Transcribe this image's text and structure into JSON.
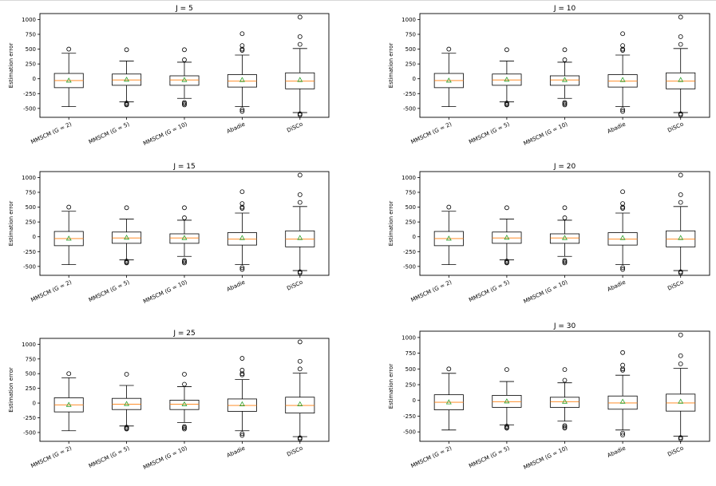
{
  "chart_data": [
    {
      "type": "box",
      "title": "J = 5",
      "ylabel": "Estimation error",
      "ylim": [
        -650,
        1100
      ],
      "yticks": [
        -500,
        -250,
        0,
        250,
        500,
        750,
        1000
      ],
      "categories": [
        "MMSCM (G = 2)",
        "MMSCM (G = 5)",
        "MMSCM (G = 10)",
        "Abadie",
        "DiSCo"
      ],
      "boxes": [
        {
          "whislo": -470,
          "q1": -150,
          "med": -30,
          "q3": 90,
          "whishi": 430,
          "mean": -30,
          "fliers": [
            500
          ]
        },
        {
          "whislo": -390,
          "q1": -110,
          "med": -20,
          "q3": 80,
          "whishi": 300,
          "mean": -15,
          "fliers": [
            490,
            -410,
            -430,
            -440
          ]
        },
        {
          "whislo": -330,
          "q1": -110,
          "med": -20,
          "q3": 50,
          "whishi": 280,
          "mean": -20,
          "fliers": [
            320,
            490,
            -400,
            -420,
            -440
          ]
        },
        {
          "whislo": -470,
          "q1": -140,
          "med": -40,
          "q3": 70,
          "whishi": 400,
          "mean": -20,
          "fliers": [
            480,
            500,
            560,
            760,
            -520,
            -550
          ]
        },
        {
          "whislo": -570,
          "q1": -170,
          "med": -40,
          "q3": 100,
          "whishi": 510,
          "mean": -20,
          "fliers": [
            580,
            710,
            1040,
            -590,
            -610
          ]
        }
      ]
    },
    {
      "type": "box",
      "title": "J = 10",
      "ylabel": "Estimation error",
      "ylim": [
        -650,
        1100
      ],
      "yticks": [
        -500,
        -250,
        0,
        250,
        500,
        750,
        1000
      ],
      "categories": [
        "MMSCM (G = 2)",
        "MMSCM (G = 5)",
        "MMSCM (G = 10)",
        "Abadie",
        "DiSCo"
      ],
      "boxes": [
        {
          "whislo": -470,
          "q1": -150,
          "med": -30,
          "q3": 90,
          "whishi": 430,
          "mean": -30,
          "fliers": [
            500
          ]
        },
        {
          "whislo": -390,
          "q1": -110,
          "med": -20,
          "q3": 80,
          "whishi": 300,
          "mean": -15,
          "fliers": [
            490,
            -410,
            -430,
            -440
          ]
        },
        {
          "whislo": -330,
          "q1": -110,
          "med": -20,
          "q3": 50,
          "whishi": 280,
          "mean": -20,
          "fliers": [
            320,
            490,
            -400,
            -420,
            -440
          ]
        },
        {
          "whislo": -470,
          "q1": -140,
          "med": -40,
          "q3": 70,
          "whishi": 400,
          "mean": -20,
          "fliers": [
            480,
            500,
            560,
            760,
            -520,
            -550
          ]
        },
        {
          "whislo": -570,
          "q1": -170,
          "med": -40,
          "q3": 100,
          "whishi": 510,
          "mean": -20,
          "fliers": [
            580,
            710,
            1040,
            -590,
            -610
          ]
        }
      ]
    },
    {
      "type": "box",
      "title": "J = 15",
      "ylabel": "Estimation error",
      "ylim": [
        -650,
        1100
      ],
      "yticks": [
        -500,
        -250,
        0,
        250,
        500,
        750,
        1000
      ],
      "categories": [
        "MMSCM (G = 2)",
        "MMSCM (G = 5)",
        "MMSCM (G = 10)",
        "Abadie",
        "DiSCo"
      ],
      "boxes": [
        {
          "whislo": -470,
          "q1": -150,
          "med": -30,
          "q3": 90,
          "whishi": 430,
          "mean": -30,
          "fliers": [
            500
          ]
        },
        {
          "whislo": -390,
          "q1": -110,
          "med": -20,
          "q3": 80,
          "whishi": 300,
          "mean": -15,
          "fliers": [
            490,
            -410,
            -430,
            -440
          ]
        },
        {
          "whislo": -330,
          "q1": -110,
          "med": -20,
          "q3": 50,
          "whishi": 280,
          "mean": -20,
          "fliers": [
            320,
            490,
            -400,
            -420,
            -440
          ]
        },
        {
          "whislo": -470,
          "q1": -140,
          "med": -40,
          "q3": 70,
          "whishi": 400,
          "mean": -20,
          "fliers": [
            480,
            500,
            560,
            760,
            -520,
            -550
          ]
        },
        {
          "whislo": -570,
          "q1": -170,
          "med": -40,
          "q3": 100,
          "whishi": 510,
          "mean": -20,
          "fliers": [
            580,
            710,
            1040,
            -590,
            -610
          ]
        }
      ]
    },
    {
      "type": "box",
      "title": "J = 20",
      "ylabel": "Estimation error",
      "ylim": [
        -650,
        1100
      ],
      "yticks": [
        -500,
        -250,
        0,
        250,
        500,
        750,
        1000
      ],
      "categories": [
        "MMSCM (G = 2)",
        "MMSCM (G = 5)",
        "MMSCM (G = 10)",
        "Abadie",
        "DiSCo"
      ],
      "boxes": [
        {
          "whislo": -470,
          "q1": -150,
          "med": -30,
          "q3": 90,
          "whishi": 430,
          "mean": -30,
          "fliers": [
            500
          ]
        },
        {
          "whislo": -390,
          "q1": -110,
          "med": -20,
          "q3": 80,
          "whishi": 300,
          "mean": -15,
          "fliers": [
            490,
            -410,
            -430,
            -440
          ]
        },
        {
          "whislo": -330,
          "q1": -110,
          "med": -20,
          "q3": 50,
          "whishi": 280,
          "mean": -20,
          "fliers": [
            320,
            490,
            -400,
            -420,
            -440
          ]
        },
        {
          "whislo": -470,
          "q1": -140,
          "med": -40,
          "q3": 70,
          "whishi": 400,
          "mean": -20,
          "fliers": [
            480,
            500,
            560,
            760,
            -520,
            -550
          ]
        },
        {
          "whislo": -570,
          "q1": -170,
          "med": -40,
          "q3": 100,
          "whishi": 510,
          "mean": -20,
          "fliers": [
            580,
            710,
            1040,
            -590,
            -610
          ]
        }
      ]
    },
    {
      "type": "box",
      "title": "J = 25",
      "ylabel": "Estimation error",
      "ylim": [
        -650,
        1100
      ],
      "yticks": [
        -500,
        -250,
        0,
        250,
        500,
        750,
        1000
      ],
      "categories": [
        "MMSCM (G = 2)",
        "MMSCM (G = 5)",
        "MMSCM (G = 10)",
        "Abadie",
        "DiSCo"
      ],
      "boxes": [
        {
          "whislo": -470,
          "q1": -150,
          "med": -30,
          "q3": 90,
          "whishi": 430,
          "mean": -30,
          "fliers": [
            500
          ]
        },
        {
          "whislo": -390,
          "q1": -110,
          "med": -20,
          "q3": 80,
          "whishi": 300,
          "mean": -15,
          "fliers": [
            490,
            -410,
            -430,
            -440
          ]
        },
        {
          "whislo": -330,
          "q1": -110,
          "med": -20,
          "q3": 50,
          "whishi": 280,
          "mean": -20,
          "fliers": [
            320,
            490,
            -400,
            -420,
            -440
          ]
        },
        {
          "whislo": -470,
          "q1": -140,
          "med": -40,
          "q3": 70,
          "whishi": 400,
          "mean": -20,
          "fliers": [
            480,
            500,
            560,
            760,
            -520,
            -550
          ]
        },
        {
          "whislo": -570,
          "q1": -170,
          "med": -40,
          "q3": 100,
          "whishi": 510,
          "mean": -20,
          "fliers": [
            580,
            710,
            1040,
            -590,
            -610
          ]
        }
      ]
    },
    {
      "type": "box",
      "title": "J = 30",
      "ylabel": "Estimation error",
      "ylim": [
        -650,
        1100
      ],
      "yticks": [
        -500,
        -250,
        0,
        250,
        500,
        750,
        1000
      ],
      "categories": [
        "MMSCM (G = 2)",
        "MMSCM (G = 5)",
        "MMSCM (G = 10)",
        "Abadie",
        "DiSCo"
      ],
      "boxes": [
        {
          "whislo": -470,
          "q1": -150,
          "med": -30,
          "q3": 90,
          "whishi": 430,
          "mean": -30,
          "fliers": [
            500
          ]
        },
        {
          "whislo": -390,
          "q1": -110,
          "med": -20,
          "q3": 80,
          "whishi": 300,
          "mean": -15,
          "fliers": [
            490,
            -410,
            -430,
            -440
          ]
        },
        {
          "whislo": -330,
          "q1": -110,
          "med": -20,
          "q3": 50,
          "whishi": 280,
          "mean": -20,
          "fliers": [
            320,
            490,
            -400,
            -420,
            -440
          ]
        },
        {
          "whislo": -470,
          "q1": -140,
          "med": -40,
          "q3": 70,
          "whishi": 400,
          "mean": -20,
          "fliers": [
            480,
            500,
            560,
            760,
            -520,
            -550
          ]
        },
        {
          "whislo": -570,
          "q1": -170,
          "med": -40,
          "q3": 100,
          "whishi": 510,
          "mean": -20,
          "fliers": [
            580,
            710,
            1040,
            -590,
            -610
          ]
        }
      ]
    }
  ],
  "colors": {
    "box": "#000000",
    "median": "#ff7f0e",
    "mean": "#2ca02c"
  }
}
